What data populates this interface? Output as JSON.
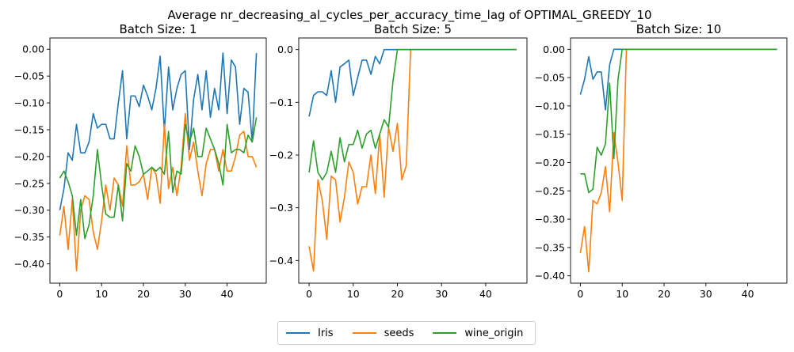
{
  "figure_title": "Average nr_decreasing_al_cycles_per_accuracy_time_lag of OPTIMAL_GREEDY_10",
  "legend_labels": [
    "Iris",
    "seeds",
    "wine_origin"
  ],
  "chart_data": [
    {
      "type": "line",
      "title": "Batch Size: 1",
      "xlim": [
        -2.35,
        49.35
      ],
      "ylim": [
        -0.436,
        0.021
      ],
      "xticks": [
        0,
        10,
        20,
        30,
        40
      ],
      "yticks": [
        -0.4,
        -0.35,
        -0.3,
        -0.25,
        -0.2,
        -0.15,
        -0.1,
        -0.05,
        0.0
      ],
      "ytick_labels": [
        "−0.40",
        "−0.35",
        "−0.30",
        "−0.25",
        "−0.20",
        "−0.15",
        "−0.10",
        "−0.05",
        "0.00"
      ],
      "series": [
        {
          "name": "Iris",
          "color": "#1f77b4",
          "values": [
            -0.3,
            -0.26,
            -0.193,
            -0.207,
            -0.14,
            -0.193,
            -0.193,
            -0.173,
            -0.12,
            -0.147,
            -0.14,
            -0.14,
            -0.167,
            -0.167,
            -0.1,
            -0.04,
            -0.167,
            -0.087,
            -0.087,
            -0.107,
            -0.067,
            -0.087,
            -0.113,
            -0.073,
            -0.013,
            -0.153,
            -0.033,
            -0.113,
            -0.073,
            -0.047,
            -0.04,
            -0.187,
            -0.093,
            -0.047,
            -0.113,
            -0.04,
            -0.127,
            -0.073,
            -0.113,
            -0.007,
            -0.12,
            -0.02,
            -0.033,
            -0.14,
            -0.073,
            -0.08,
            -0.173,
            -0.007
          ]
        },
        {
          "name": "seeds",
          "color": "#ff7f0e",
          "values": [
            -0.347,
            -0.293,
            -0.373,
            -0.28,
            -0.413,
            -0.3,
            -0.273,
            -0.28,
            -0.34,
            -0.373,
            -0.32,
            -0.253,
            -0.3,
            -0.24,
            -0.253,
            -0.293,
            -0.18,
            -0.253,
            -0.253,
            -0.247,
            -0.233,
            -0.28,
            -0.22,
            -0.233,
            -0.287,
            -0.14,
            -0.26,
            -0.22,
            -0.273,
            -0.22,
            -0.12,
            -0.207,
            -0.173,
            -0.227,
            -0.273,
            -0.213,
            -0.187,
            -0.187,
            -0.227,
            -0.187,
            -0.227,
            -0.227,
            -0.2,
            -0.16,
            -0.153,
            -0.2,
            -0.2,
            -0.22
          ]
        },
        {
          "name": "wine_origin",
          "color": "#2ca02c",
          "values": [
            -0.24,
            -0.227,
            -0.247,
            -0.273,
            -0.347,
            -0.28,
            -0.353,
            -0.327,
            -0.273,
            -0.187,
            -0.253,
            -0.307,
            -0.313,
            -0.313,
            -0.253,
            -0.32,
            -0.213,
            -0.227,
            -0.18,
            -0.2,
            -0.233,
            -0.227,
            -0.22,
            -0.227,
            -0.22,
            -0.233,
            -0.153,
            -0.267,
            -0.227,
            -0.233,
            -0.14,
            -0.173,
            -0.147,
            -0.2,
            -0.2,
            -0.147,
            -0.167,
            -0.187,
            -0.213,
            -0.253,
            -0.14,
            -0.193,
            -0.187,
            -0.187,
            -0.193,
            -0.16,
            -0.173,
            -0.127
          ]
        }
      ]
    },
    {
      "type": "line",
      "title": "Batch Size: 5",
      "xlim": [
        -2.35,
        49.35
      ],
      "ylim": [
        -0.443,
        0.022
      ],
      "xticks": [
        0,
        10,
        20,
        30,
        40
      ],
      "yticks": [
        -0.4,
        -0.3,
        -0.2,
        -0.1,
        0.0
      ],
      "ytick_labels": [
        "−0.4",
        "−0.3",
        "−0.2",
        "−0.1",
        "0.0"
      ],
      "series": [
        {
          "name": "Iris",
          "color": "#1f77b4",
          "values": [
            -0.127,
            -0.087,
            -0.08,
            -0.08,
            -0.087,
            -0.04,
            -0.1,
            -0.033,
            -0.027,
            -0.02,
            -0.087,
            -0.053,
            -0.02,
            -0.02,
            -0.047,
            -0.013,
            -0.027,
            0.0,
            0.0,
            0.0,
            0.0,
            0.0,
            0.0,
            0.0,
            0.0,
            0.0,
            0.0,
            0.0,
            0.0,
            0.0,
            0.0,
            0.0,
            0.0,
            0.0,
            0.0,
            0.0,
            0.0,
            0.0,
            0.0,
            0.0,
            0.0,
            0.0,
            0.0,
            0.0,
            0.0,
            0.0,
            0.0,
            0.0
          ]
        },
        {
          "name": "seeds",
          "color": "#ff7f0e",
          "values": [
            -0.373,
            -0.42,
            -0.247,
            -0.287,
            -0.36,
            -0.24,
            -0.247,
            -0.327,
            -0.28,
            -0.213,
            -0.233,
            -0.293,
            -0.26,
            -0.26,
            -0.2,
            -0.273,
            -0.16,
            -0.28,
            -0.147,
            -0.193,
            -0.14,
            -0.247,
            -0.22,
            0.0,
            0.0,
            0.0,
            0.0,
            0.0,
            0.0,
            0.0,
            0.0,
            0.0,
            0.0,
            0.0,
            0.0,
            0.0,
            0.0,
            0.0,
            0.0,
            0.0,
            0.0,
            0.0,
            0.0,
            0.0,
            0.0,
            0.0,
            0.0,
            0.0
          ]
        },
        {
          "name": "wine_origin",
          "color": "#2ca02c",
          "values": [
            -0.233,
            -0.173,
            -0.233,
            -0.247,
            -0.233,
            -0.193,
            -0.233,
            -0.167,
            -0.213,
            -0.18,
            -0.18,
            -0.153,
            -0.187,
            -0.16,
            -0.153,
            -0.187,
            -0.16,
            -0.133,
            -0.147,
            -0.06,
            0.0,
            0.0,
            0.0,
            0.0,
            0.0,
            0.0,
            0.0,
            0.0,
            0.0,
            0.0,
            0.0,
            0.0,
            0.0,
            0.0,
            0.0,
            0.0,
            0.0,
            0.0,
            0.0,
            0.0,
            0.0,
            0.0,
            0.0,
            0.0,
            0.0,
            0.0,
            0.0,
            0.0
          ]
        }
      ]
    },
    {
      "type": "line",
      "title": "Batch Size: 10",
      "xlim": [
        -2.35,
        49.35
      ],
      "ylim": [
        -0.413,
        0.02
      ],
      "xticks": [
        0,
        10,
        20,
        30,
        40
      ],
      "yticks": [
        -0.4,
        -0.35,
        -0.3,
        -0.25,
        -0.2,
        -0.15,
        -0.1,
        -0.05,
        0.0
      ],
      "ytick_labels": [
        "−0.40",
        "−0.35",
        "−0.30",
        "−0.25",
        "−0.20",
        "−0.15",
        "−0.10",
        "−0.05",
        "0.00"
      ],
      "series": [
        {
          "name": "Iris",
          "color": "#1f77b4",
          "values": [
            -0.08,
            -0.053,
            -0.013,
            -0.053,
            -0.04,
            -0.04,
            -0.107,
            -0.027,
            0.0,
            0.0,
            0.0,
            0.0,
            0.0,
            0.0,
            0.0,
            0.0,
            0.0,
            0.0,
            0.0,
            0.0,
            0.0,
            0.0,
            0.0,
            0.0,
            0.0,
            0.0,
            0.0,
            0.0,
            0.0,
            0.0,
            0.0,
            0.0,
            0.0,
            0.0,
            0.0,
            0.0,
            0.0,
            0.0,
            0.0,
            0.0,
            0.0,
            0.0,
            0.0,
            0.0,
            0.0,
            0.0,
            0.0,
            0.0
          ]
        },
        {
          "name": "seeds",
          "color": "#ff7f0e",
          "values": [
            -0.36,
            -0.313,
            -0.393,
            -0.267,
            -0.273,
            -0.253,
            -0.207,
            -0.287,
            -0.147,
            -0.2,
            -0.267,
            0.0,
            0.0,
            0.0,
            0.0,
            0.0,
            0.0,
            0.0,
            0.0,
            0.0,
            0.0,
            0.0,
            0.0,
            0.0,
            0.0,
            0.0,
            0.0,
            0.0,
            0.0,
            0.0,
            0.0,
            0.0,
            0.0,
            0.0,
            0.0,
            0.0,
            0.0,
            0.0,
            0.0,
            0.0,
            0.0,
            0.0,
            0.0,
            0.0,
            0.0,
            0.0,
            0.0,
            0.0
          ]
        },
        {
          "name": "wine_origin",
          "color": "#2ca02c",
          "values": [
            -0.22,
            -0.22,
            -0.253,
            -0.247,
            -0.173,
            -0.187,
            -0.167,
            -0.06,
            -0.193,
            -0.053,
            0.0,
            0.0,
            0.0,
            0.0,
            0.0,
            0.0,
            0.0,
            0.0,
            0.0,
            0.0,
            0.0,
            0.0,
            0.0,
            0.0,
            0.0,
            0.0,
            0.0,
            0.0,
            0.0,
            0.0,
            0.0,
            0.0,
            0.0,
            0.0,
            0.0,
            0.0,
            0.0,
            0.0,
            0.0,
            0.0,
            0.0,
            0.0,
            0.0,
            0.0,
            0.0,
            0.0,
            0.0,
            0.0
          ]
        }
      ]
    }
  ]
}
